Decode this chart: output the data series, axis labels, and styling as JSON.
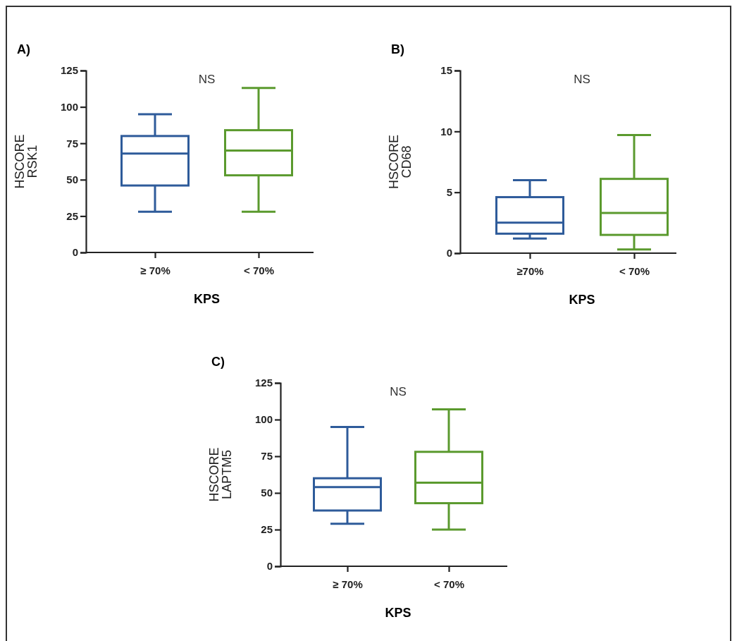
{
  "chart_data": [
    {
      "type": "box",
      "title": "A)",
      "xlabel": "KPS",
      "ylabel": "HSCORE\nRSK1",
      "categories": [
        "≥ 70%",
        "< 70%"
      ],
      "colors": [
        "#2e5b9a",
        "#5b9a2e"
      ],
      "ylim": [
        0,
        125
      ],
      "yticks": [
        0,
        25,
        50,
        75,
        100,
        125
      ],
      "annotations": [
        "NS"
      ],
      "boxes": [
        {
          "low": 28,
          "q1": 46,
          "median": 68,
          "q3": 80,
          "high": 95
        },
        {
          "low": 28,
          "q1": 53,
          "median": 70,
          "q3": 84,
          "high": 113
        }
      ]
    },
    {
      "type": "box",
      "title": "B)",
      "xlabel": "KPS",
      "ylabel": "HSCORE\nCD68",
      "categories": [
        "≥70%",
        "< 70%"
      ],
      "colors": [
        "#2e5b9a",
        "#5b9a2e"
      ],
      "ylim": [
        0,
        15
      ],
      "yticks": [
        0,
        5,
        10,
        15
      ],
      "annotations": [
        "NS"
      ],
      "boxes": [
        {
          "low": 1.2,
          "q1": 1.6,
          "median": 2.5,
          "q3": 4.6,
          "high": 6.0
        },
        {
          "low": 0.3,
          "q1": 1.5,
          "median": 3.3,
          "q3": 6.1,
          "high": 9.7
        }
      ]
    },
    {
      "type": "box",
      "title": "C)",
      "xlabel": "KPS",
      "ylabel": "HSCORE\nLAPTM5",
      "categories": [
        "≥ 70%",
        "< 70%"
      ],
      "colors": [
        "#2e5b9a",
        "#5b9a2e"
      ],
      "ylim": [
        0,
        125
      ],
      "yticks": [
        0,
        25,
        50,
        75,
        100,
        125
      ],
      "annotations": [
        "NS"
      ],
      "boxes": [
        {
          "low": 29,
          "q1": 38,
          "median": 54,
          "q3": 60,
          "high": 95
        },
        {
          "low": 25,
          "q1": 43,
          "median": 57,
          "q3": 78,
          "high": 107
        }
      ]
    }
  ]
}
